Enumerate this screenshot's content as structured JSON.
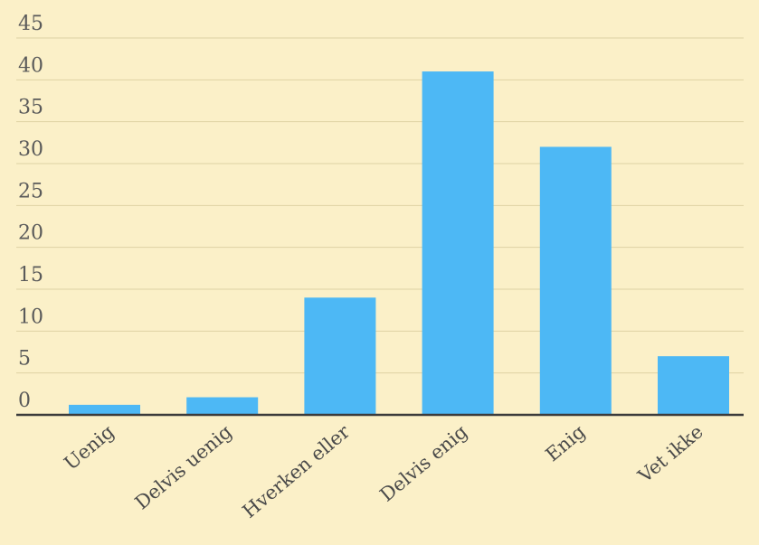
{
  "chart_data": {
    "type": "bar",
    "title": "",
    "xlabel": "",
    "ylabel": "",
    "categories": [
      "Uenig",
      "Delvis uenig",
      "Hverken eller",
      "Delvis enig",
      "Enig",
      "Vet ikke"
    ],
    "values": [
      1.2,
      2.1,
      14,
      41,
      32,
      7
    ],
    "ylim": [
      0,
      45
    ],
    "yticks": [
      0,
      5,
      10,
      15,
      20,
      25,
      30,
      35,
      40,
      45
    ],
    "grid": true,
    "legend": "none",
    "colors": {
      "bar": "#4db8f5",
      "background": "#fbf0c8",
      "grid": "#ded2a4",
      "axis": "#3b3b3b"
    }
  }
}
